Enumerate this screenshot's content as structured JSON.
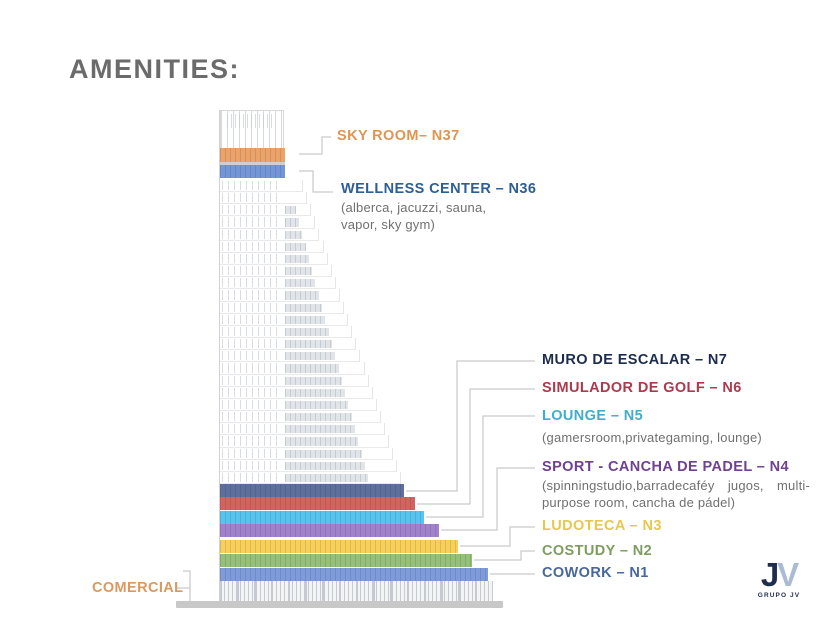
{
  "title": "AMENITIES:",
  "amenities": {
    "sky_room": {
      "label": "SKY ROOM– N37"
    },
    "wellness": {
      "label": "WELLNESS CENTER – N36",
      "sub": "(alberca, jacuzzi, sauna, vapor, sky gym)"
    },
    "muro": {
      "label": "MURO DE ESCALAR – N7"
    },
    "simulador": {
      "label": "SIMULADOR DE GOLF – N6"
    },
    "lounge": {
      "label": "LOUNGE – N5",
      "sub": "(gamersroom,privategaming, lounge)"
    },
    "sport": {
      "label": "SPORT - CANCHA DE PADEL – N4",
      "sub": "(spinningstudio,barradecaféy jugos, multi-purpose room, cancha de pádel)"
    },
    "ludoteca": {
      "label": "LUDOTECA – N3"
    },
    "costudy": {
      "label": "COSTUDY – N2"
    },
    "cowork": {
      "label": "COWORK – N1"
    },
    "comercial": {
      "label": "COMERCIAL"
    }
  },
  "label_colors": {
    "title": "#6b6b6b",
    "sky_room": "#DE9551",
    "wellness": "#2E5E96",
    "muro": "#1C2C4F",
    "simulador": "#AC3A4C",
    "lounge": "#3FAECB",
    "sport": "#6E4191",
    "ludoteca": "#E6C84E",
    "costudy": "#7E9D5F",
    "cowork": "#48689B",
    "comercial": "#D9995F",
    "subtext": "#707070",
    "leader_line": "#C9C9C9"
  },
  "building": {
    "top_bands": [
      {
        "id": "sky-room",
        "color": "#EBA369"
      },
      {
        "id": "wellness",
        "color": "#7495D8"
      }
    ],
    "lower_bands": [
      {
        "id": "n7-muro",
        "color": "#5D6F9B"
      },
      {
        "id": "n6-golf",
        "color": "#D4635F"
      },
      {
        "id": "n5-lounge",
        "color": "#57C4F0"
      },
      {
        "id": "n4-sport",
        "color": "#A181CC"
      },
      {
        "id": "n3-ludoteca",
        "color": "#F7CF59"
      },
      {
        "id": "n2-costudy",
        "color": "#95C078"
      },
      {
        "id": "n1-cowork",
        "color": "#7F9BDA"
      }
    ]
  },
  "logo": {
    "letter_j": "J",
    "letter_v": "V",
    "letter_j_color": "#1F2D4E",
    "letter_v_color": "#A9BCD4",
    "caption": "GRUPO JV"
  }
}
